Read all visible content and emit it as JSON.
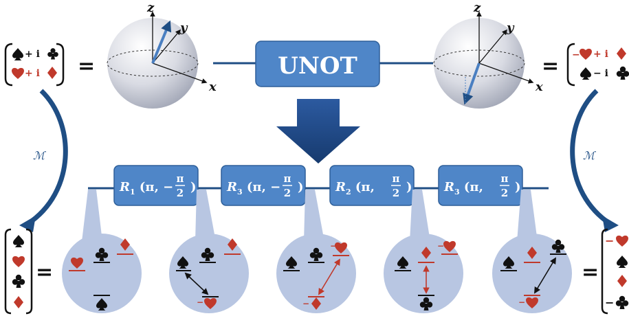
{
  "gates": {
    "unot": "UNOT",
    "seq": [
      {
        "sym": "R",
        "sub": "1",
        "arg": "π,",
        "sign": "−",
        "num": "π",
        "den": "2"
      },
      {
        "sym": "R",
        "sub": "3",
        "arg": "π,",
        "sign": "−",
        "num": "π",
        "den": "2"
      },
      {
        "sym": "R",
        "sub": "2",
        "arg": "π,",
        "sign": "",
        "num": "π",
        "den": "2"
      },
      {
        "sym": "R",
        "sub": "3",
        "arg": "π,",
        "sign": "",
        "num": "π",
        "den": "2"
      }
    ]
  },
  "axes": {
    "x": "x",
    "y": "y",
    "z": "z"
  },
  "map_label": "ℳ",
  "equals": "=",
  "state_left": {
    "row1_op": "+ i",
    "row2_op": "+ i"
  },
  "state_right": {
    "row1_op": "+ i",
    "row1_sign": "−",
    "row2_op": "− i"
  },
  "vector_right_signs": [
    "−",
    "−"
  ],
  "colors": {
    "gate": "#4f86c8",
    "wire": "#1f4e84",
    "circle": "#b8c6e2",
    "red": "#c0392b",
    "black": "#111111"
  }
}
